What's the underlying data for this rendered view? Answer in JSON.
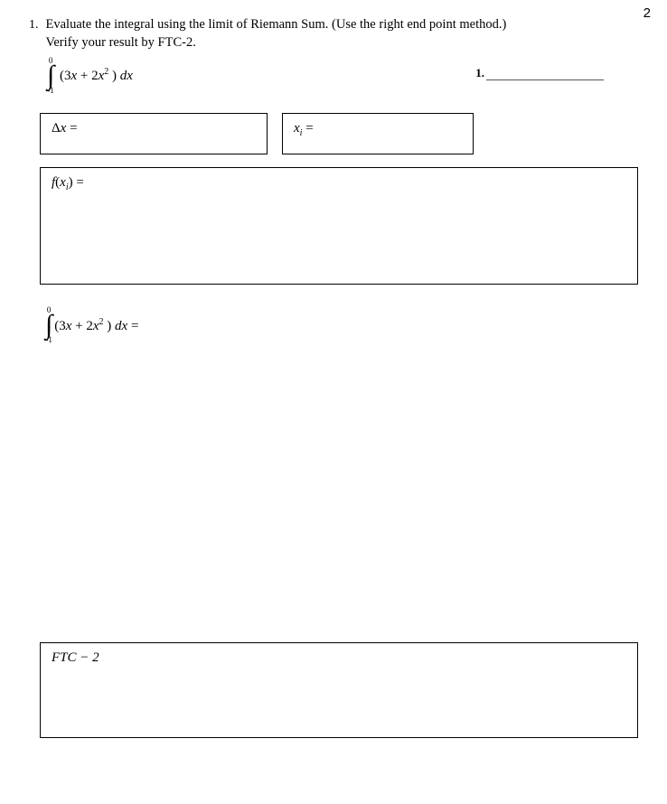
{
  "page_number": "2",
  "problem": {
    "number": "1.",
    "line1": "Evaluate the integral using the limit of Riemann Sum. (Use the right end point method.)",
    "line2": "Verify your result by FTC-2."
  },
  "integral": {
    "upper": "0",
    "lower": "-1",
    "expr_pre": "(3",
    "expr_x": "x",
    "expr_mid": " + 2",
    "expr_x2": "x",
    "expr_sup": "2",
    "expr_post": " ) ",
    "dx": "dx"
  },
  "score_label": "1.",
  "boxes": {
    "dx_label": "Δx =",
    "xi_label_x": "x",
    "xi_label_sub": "i",
    "xi_label_eq": " =",
    "fxi_label_f": "f",
    "fxi_label_paren1": "(",
    "fxi_label_x": "x",
    "fxi_label_sub": "i",
    "fxi_label_paren2": ") =",
    "ftc_label": "FTC − 2"
  },
  "mid_integral_eq": " ="
}
